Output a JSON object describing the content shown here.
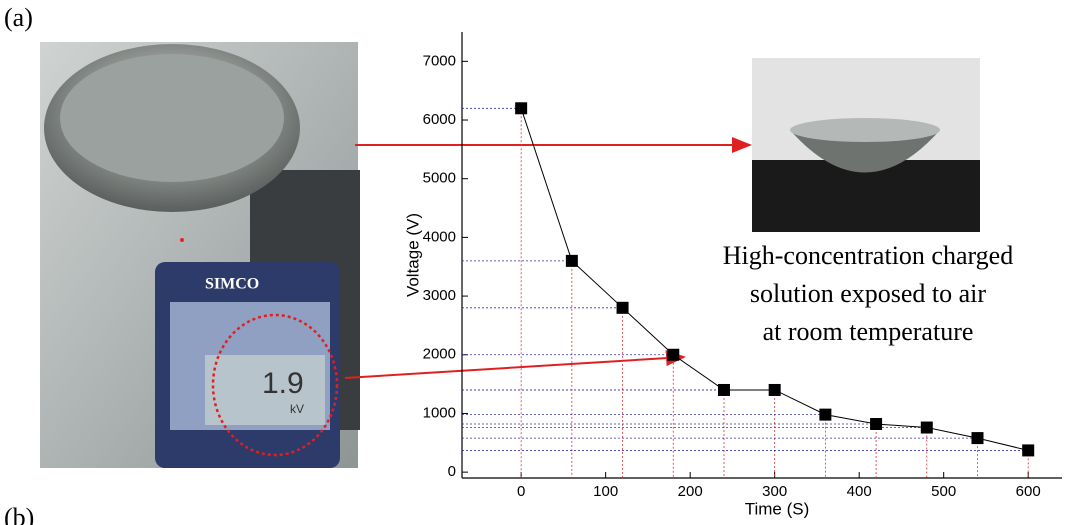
{
  "chart_data": {
    "type": "line",
    "panel_labels": [
      "(a)",
      "(b)"
    ],
    "xlabel": "Time (S)",
    "ylabel": "Voltage (V)",
    "x": [
      0,
      60,
      120,
      180,
      240,
      300,
      360,
      420,
      480,
      540,
      600
    ],
    "values": [
      6200,
      3600,
      2800,
      2000,
      1400,
      1400,
      980,
      820,
      760,
      580,
      370
    ],
    "color": "#000000",
    "xlim": [
      -70,
      640
    ],
    "xticks": [
      0,
      100,
      200,
      300,
      400,
      500,
      600
    ],
    "ylim": [
      -100,
      7500
    ],
    "yticks": [
      0,
      1000,
      2000,
      3000,
      4000,
      5000,
      6000,
      7000
    ],
    "annotation": [
      "High-concentration charged",
      "solution exposed to air",
      "at room temperature"
    ],
    "meter_brand": "SIMCO",
    "meter_reading": "1.9",
    "meter_unit": "kV"
  }
}
